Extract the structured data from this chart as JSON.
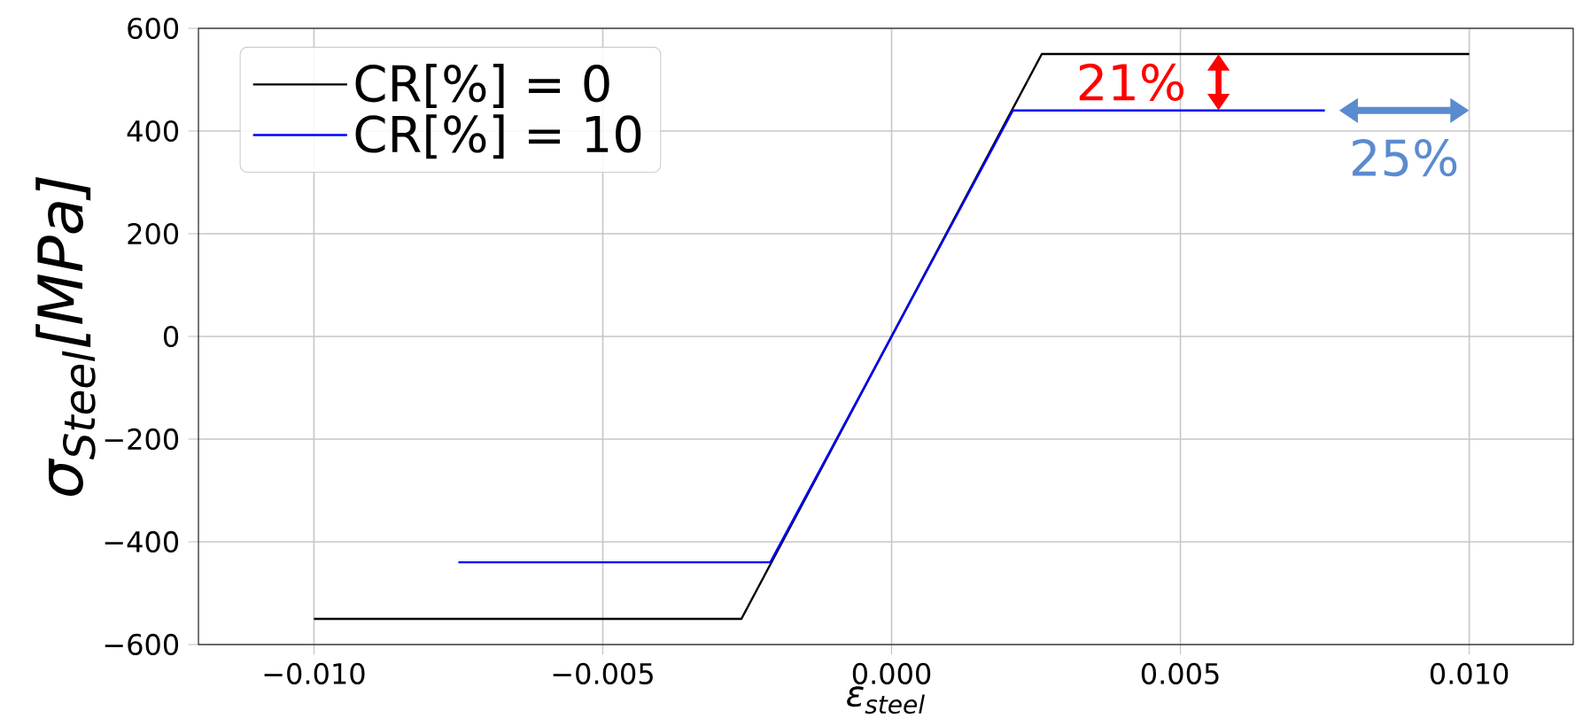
{
  "chart_data": {
    "type": "line",
    "xlabel": "ε$_{steel}$",
    "ylabel": "σ$_{Steel}$[MPa]",
    "xlim": [
      -0.012,
      0.0118
    ],
    "ylim": [
      -600,
      600
    ],
    "xticks": [
      {
        "value": -0.01,
        "label": "−0.010"
      },
      {
        "value": -0.005,
        "label": "−0.005"
      },
      {
        "value": 0,
        "label": "0.000"
      },
      {
        "value": 0.005,
        "label": "0.005"
      },
      {
        "value": 0.01,
        "label": "0.010"
      }
    ],
    "yticks": [
      {
        "value": -600,
        "label": "−600"
      },
      {
        "value": -400,
        "label": "−400"
      },
      {
        "value": -200,
        "label": "−200"
      },
      {
        "value": 0,
        "label": "0"
      },
      {
        "value": 200,
        "label": "200"
      },
      {
        "value": 400,
        "label": "400"
      },
      {
        "value": 600,
        "label": "600"
      }
    ],
    "grid": true,
    "legend": "top left",
    "marker": "none",
    "line_style": "solid",
    "series": [
      {
        "name": "CR[%] = 0",
        "color": "#000000",
        "x": [
          -0.01,
          -0.0026,
          0.0026,
          0.01
        ],
        "values": [
          -550,
          -550,
          550,
          550
        ]
      },
      {
        "name": "CR[%] = 10",
        "color": "#0000ff",
        "x": [
          -0.0075,
          -0.0021,
          0.0021,
          0.0075
        ],
        "values": [
          -440,
          -440,
          440,
          440
        ]
      }
    ],
    "annotations": [
      "21%",
      "25%"
    ]
  }
}
